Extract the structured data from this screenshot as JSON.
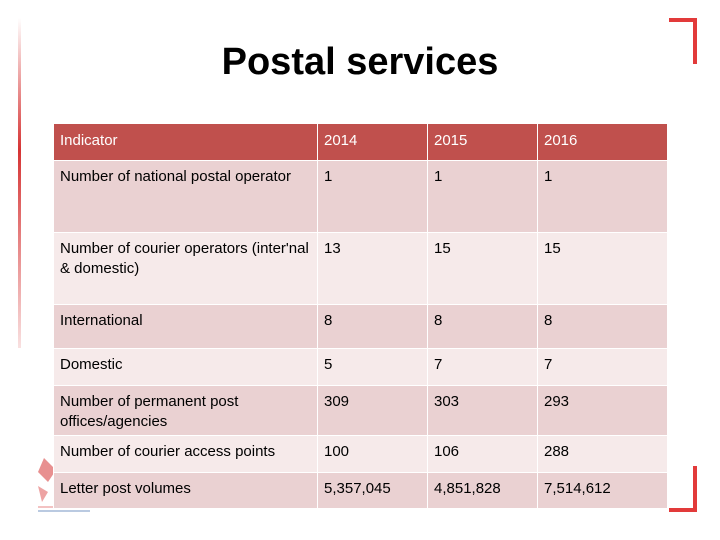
{
  "slide": {
    "title": "Postal services"
  },
  "table": {
    "headers": [
      "Indicator",
      "2014",
      "2015",
      "2016"
    ],
    "rows": [
      {
        "indicator": "Number of national postal operator",
        "y2014": "1",
        "y2015": "1",
        "y2016": "1"
      },
      {
        "indicator": "Number of courier operators (inter'nal & domestic)",
        "y2014": "13",
        "y2015": "15",
        "y2016": "15"
      },
      {
        "indicator": "International",
        "y2014": "8",
        "y2015": "8",
        "y2016": "8"
      },
      {
        "indicator": "Domestic",
        "y2014": "5",
        "y2015": "7",
        "y2016": "7"
      },
      {
        "indicator": "Number of permanent post offices/agencies",
        "y2014": "309",
        "y2015": "303",
        "y2016": "293"
      },
      {
        "indicator": "Number of courier access points",
        "y2014": "100",
        "y2015": "106",
        "y2016": "288"
      },
      {
        "indicator": "Letter post volumes",
        "y2014": "5,357,045",
        "y2015": "4,851,828",
        "y2016": "7,514,612"
      }
    ]
  },
  "colors": {
    "header": "#c0504d",
    "row_dark": "#ead1d2",
    "row_light": "#f6eaea",
    "accent": "#e23a3a"
  }
}
